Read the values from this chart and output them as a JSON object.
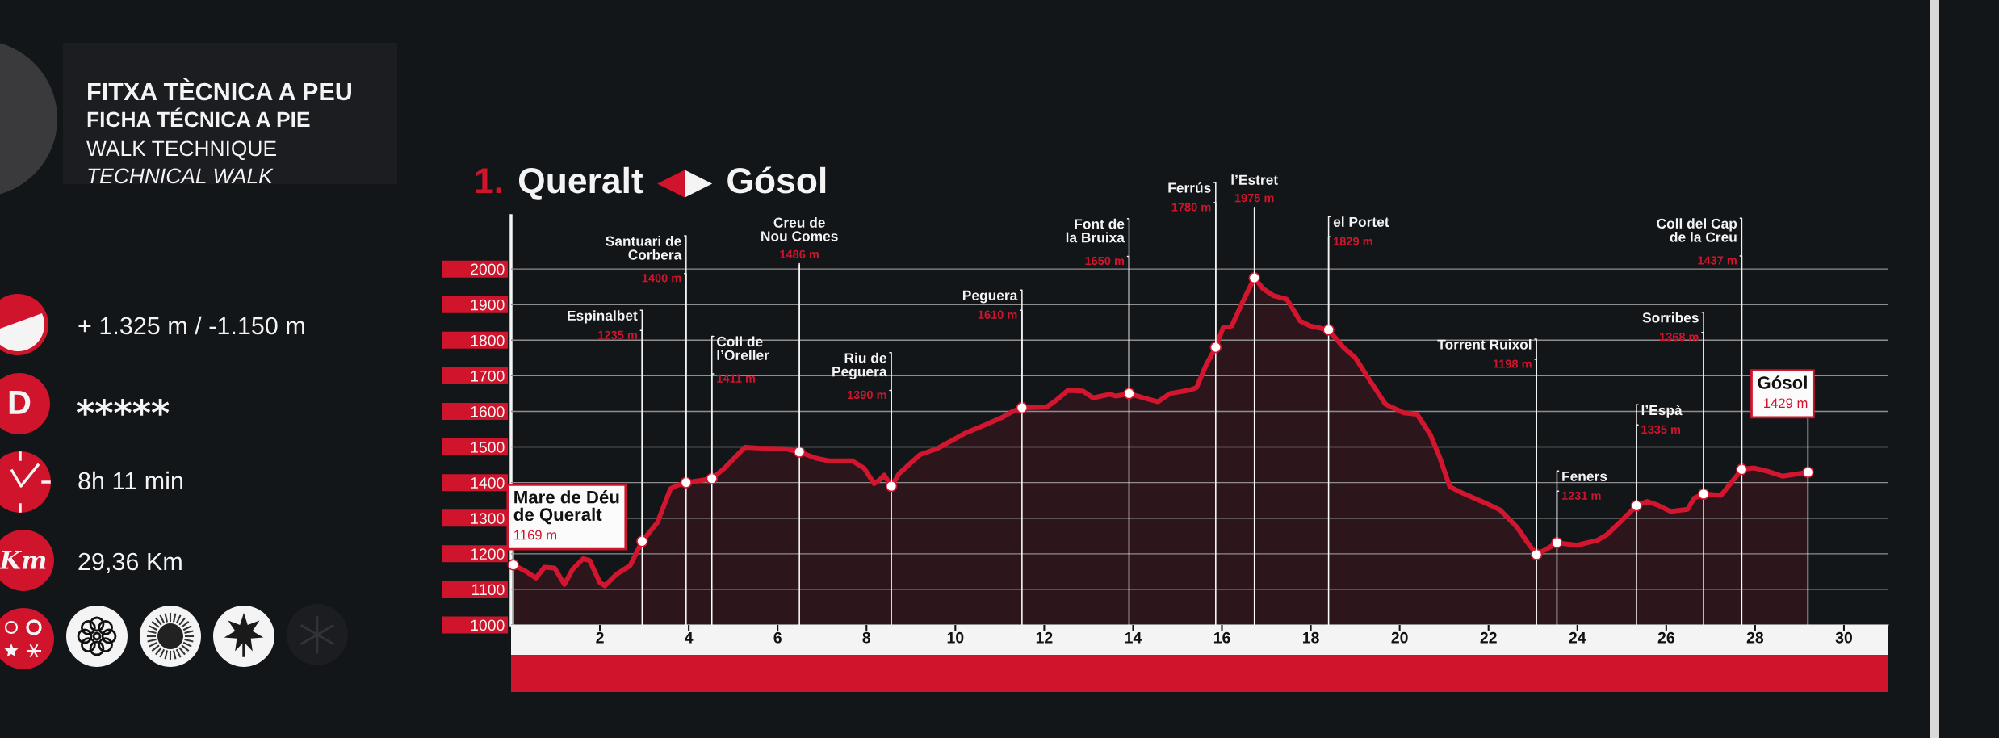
{
  "chart_data": [
    {
      "type": "other",
      "title": "FITXA TÈCNICA A PEU",
      "subtitle": "FICHA TÉCNICA A PIE",
      "annotations": [
        "WALK TECHNIQUE",
        "TECHNICAL WALK",
        "+ 1.325 m / -1.150 m",
        "D",
        "*****",
        "8h 11 min",
        "Km",
        "29,36 Km"
      ]
    },
    {
      "type": "area",
      "title": "1. Queralt ◀▶ Gósol",
      "xlim": [
        0,
        31
      ],
      "xticks": [
        2,
        4,
        6,
        8,
        10,
        12,
        14,
        16,
        18,
        20,
        22,
        24,
        26,
        28,
        30
      ],
      "ylim": [
        1000,
        2150
      ],
      "yticks": [
        1000,
        1100,
        1200,
        1300,
        1400,
        1500,
        1600,
        1700,
        1800,
        1900,
        2000
      ],
      "grid": "y",
      "series": [
        {
          "type": "area",
          "color": "#d3162f",
          "x": [
            0.05,
            0.3,
            0.56,
            0.75,
            0.98,
            1.2,
            1.39,
            1.62,
            1.77,
            2.0,
            2.11,
            2.38,
            2.68,
            2.95,
            3.29,
            3.59,
            3.74,
            3.94,
            4.27,
            4.52,
            4.8,
            5.26,
            5.56,
            6.17,
            6.49,
            6.85,
            7.15,
            7.68,
            7.95,
            8.17,
            8.29,
            8.4,
            8.56,
            8.74,
            9.2,
            9.58,
            9.88,
            10.24,
            10.69,
            11.07,
            11.26,
            11.5,
            12.05,
            12.27,
            12.53,
            12.87,
            13.1,
            13.47,
            13.62,
            13.91,
            14.23,
            14.56,
            14.83,
            15.28,
            15.43,
            15.65,
            15.86,
            16.03,
            16.22,
            16.48,
            16.73,
            16.93,
            17.16,
            17.46,
            17.76,
            17.98,
            18.4,
            18.74,
            19.0,
            19.34,
            19.68,
            20.09,
            20.39,
            20.69,
            20.91,
            21.13,
            21.44,
            21.96,
            22.26,
            22.64,
            22.87,
            23.08,
            23.32,
            23.54,
            23.99,
            24.45,
            24.67,
            24.97,
            25.33,
            25.57,
            25.8,
            26.1,
            26.48,
            26.63,
            26.84,
            27.23,
            27.45,
            27.7,
            27.98,
            28.28,
            28.62,
            28.88,
            29.19
          ],
          "values": [
            1169,
            1153,
            1132,
            1162,
            1160,
            1114,
            1157,
            1186,
            1181,
            1119,
            1110,
            1143,
            1167,
            1235,
            1287,
            1383,
            1392,
            1400,
            1406,
            1411,
            1440,
            1499,
            1497,
            1495,
            1486,
            1469,
            1461,
            1461,
            1440,
            1397,
            1407,
            1421,
            1390,
            1426,
            1478,
            1495,
            1515,
            1540,
            1563,
            1584,
            1598,
            1610,
            1612,
            1631,
            1659,
            1657,
            1638,
            1648,
            1643,
            1650,
            1638,
            1627,
            1650,
            1660,
            1667,
            1732,
            1780,
            1836,
            1840,
            1911,
            1975,
            1944,
            1925,
            1915,
            1854,
            1840,
            1829,
            1779,
            1751,
            1685,
            1620,
            1596,
            1592,
            1535,
            1468,
            1388,
            1369,
            1341,
            1323,
            1275,
            1233,
            1198,
            1214,
            1231,
            1224,
            1238,
            1254,
            1290,
            1335,
            1347,
            1337,
            1319,
            1325,
            1356,
            1368,
            1364,
            1398,
            1437,
            1441,
            1432,
            1418,
            1423,
            1429
          ]
        },
        {
          "type": "lollipop",
          "color": "#ffffff",
          "marker": "circle",
          "x": [
            0.05,
            2.95,
            3.94,
            4.52,
            6.49,
            8.56,
            11.5,
            13.91,
            15.86,
            16.73,
            18.4,
            23.08,
            23.54,
            25.33,
            26.84,
            27.7,
            29.19
          ],
          "values": [
            1169,
            1235,
            1400,
            1411,
            1486,
            1390,
            1610,
            1650,
            1780,
            1975,
            1829,
            1198,
            1231,
            1335,
            1368,
            1437,
            1429
          ],
          "value_labels": [
            "1169 m",
            "1235 m",
            "1400 m",
            "1411 m",
            "1486 m",
            "1390 m",
            "1610 m",
            "1650 m",
            "1780 m",
            "1975 m",
            "1829 m",
            "1198 m",
            "1231 m",
            "1335 m",
            "1368 m",
            "1437 m",
            "1429 m"
          ]
        }
      ],
      "annotations": [
        {
          "text": "Mare de Déu\nde Queralt",
          "x": 0.05,
          "y": 1169
        },
        {
          "text": "Espinalbet",
          "x": 2.95,
          "y": 1235
        },
        {
          "text": "Santuari de\nCorbera",
          "x": 3.94,
          "y": 1400
        },
        {
          "text": "Coll de\nl’Oreller",
          "x": 4.52,
          "y": 1411
        },
        {
          "text": "Creu de\nNou Comes",
          "x": 6.49,
          "y": 1486
        },
        {
          "text": "Riu de\nPeguera",
          "x": 8.56,
          "y": 1390
        },
        {
          "text": "Peguera",
          "x": 11.5,
          "y": 1610
        },
        {
          "text": "Font de\nla Bruixa",
          "x": 13.91,
          "y": 1650
        },
        {
          "text": "Ferrús",
          "x": 15.86,
          "y": 1780
        },
        {
          "text": "l’Estret",
          "x": 16.73,
          "y": 1975
        },
        {
          "text": "el Portet",
          "x": 18.4,
          "y": 1829
        },
        {
          "text": "Torrent Ruixol",
          "x": 23.08,
          "y": 1198
        },
        {
          "text": "Feners",
          "x": 23.54,
          "y": 1231
        },
        {
          "text": "l’Espà",
          "x": 25.33,
          "y": 1335
        },
        {
          "text": "Sorribes",
          "x": 26.84,
          "y": 1368
        },
        {
          "text": "Coll del Cap\nde la Creu",
          "x": 27.7,
          "y": 1437
        },
        {
          "text": "Gósol",
          "x": 29.19,
          "y": 1429
        }
      ]
    }
  ]
}
